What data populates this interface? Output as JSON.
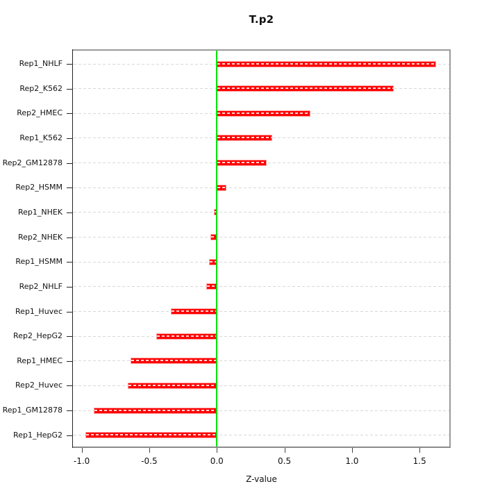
{
  "chart_data": {
    "type": "bar",
    "orientation": "horizontal",
    "title": "T.p2",
    "xlabel": "Z-value",
    "ylabel": "",
    "legend": "none",
    "grid": "horizontal-dashed",
    "categories": [
      "Rep1_NHLF",
      "Rep2_K562",
      "Rep2_HMEC",
      "Rep1_K562",
      "Rep2_GM12878",
      "Rep2_HSMM",
      "Rep1_NHEK",
      "Rep2_NHEK",
      "Rep1_HSMM",
      "Rep2_NHLF",
      "Rep1_Huvec",
      "Rep2_HepG2",
      "Rep1_HMEC",
      "Rep2_Huvec",
      "Rep1_GM12878",
      "Rep1_HepG2"
    ],
    "values": [
      1.62,
      1.31,
      0.69,
      0.41,
      0.37,
      0.07,
      -0.02,
      -0.05,
      -0.06,
      -0.08,
      -0.34,
      -0.45,
      -0.64,
      -0.66,
      -0.91,
      -0.97
    ],
    "x_tick_labels": [
      "-1.0",
      "-0.5",
      "0.0",
      "0.5",
      "1.0",
      "1.5"
    ],
    "x_tick_values": [
      -1.0,
      -0.5,
      0.0,
      0.5,
      1.0,
      1.5
    ],
    "xlim": [
      -1.07,
      1.73
    ],
    "zero_line": 0.0,
    "colors": {
      "bar": "#FF0000",
      "bar_border": "#FF9E9E",
      "zero_line": "#00E600",
      "grid_line": "#D8D8D8",
      "panel_border": "#9A9A9A",
      "axis": "#222222",
      "text": "#1A1A1A"
    }
  }
}
